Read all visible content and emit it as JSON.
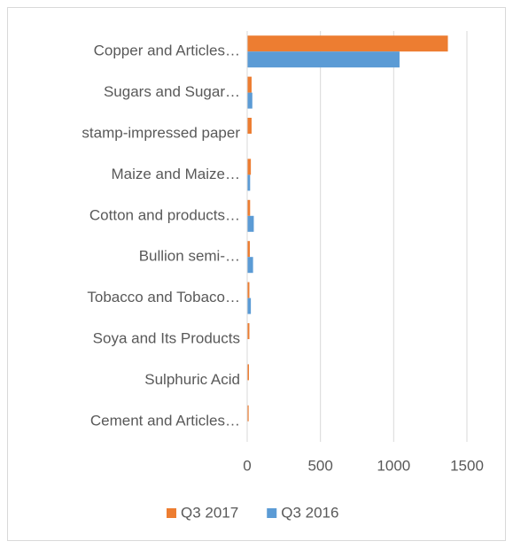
{
  "chart_data": {
    "type": "bar",
    "orientation": "horizontal",
    "categories": [
      "Copper and Articles…",
      "Sugars and Sugar…",
      "stamp-impressed paper",
      "Maize and Maize…",
      "Cotton and products…",
      "Bullion semi-…",
      "Tobacco and Tobaco…",
      "Soya and Its Products",
      "Sulphuric Acid",
      "Cement and Articles…"
    ],
    "series": [
      {
        "name": "Q3 2017",
        "color": "#ed7d31",
        "values": [
          1370,
          30,
          30,
          25,
          20,
          18,
          15,
          15,
          12,
          10
        ]
      },
      {
        "name": "Q3 2016",
        "color": "#5b9bd5",
        "values": [
          1040,
          35,
          2,
          20,
          45,
          40,
          25,
          0,
          3,
          3
        ]
      }
    ],
    "xlim": [
      0,
      1500
    ],
    "xticks": [
      0,
      500,
      1000,
      1500
    ],
    "grid": true,
    "legend": "bottom"
  }
}
